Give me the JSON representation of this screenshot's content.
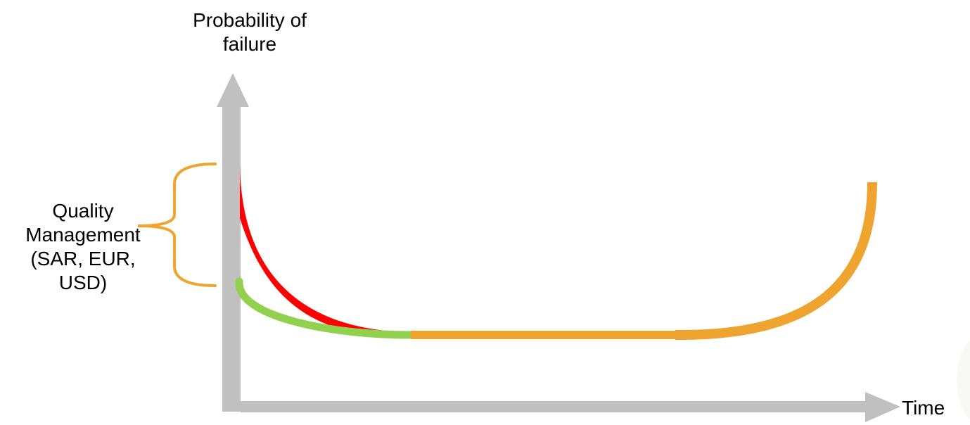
{
  "y_axis": {
    "label_lines": [
      "Probability of",
      "failure"
    ]
  },
  "x_axis": {
    "label": "Time"
  },
  "bracket_label": {
    "lines": [
      "Quality",
      "Management",
      "(SAR, EUR,",
      "USD)"
    ]
  },
  "colors": {
    "axis": "#c0c0c0",
    "early_failure_curve": "#ff0000",
    "improved_curve": "#92d050",
    "useful_life_and_wearout_curve": "#f0a430",
    "bracket": "#f0a430"
  },
  "curves": [
    {
      "id": "early-failure",
      "color_key": "early_failure_curve"
    },
    {
      "id": "improved-early",
      "color_key": "improved_curve"
    },
    {
      "id": "useful-life-wearout",
      "color_key": "useful_life_and_wearout_curve"
    }
  ]
}
